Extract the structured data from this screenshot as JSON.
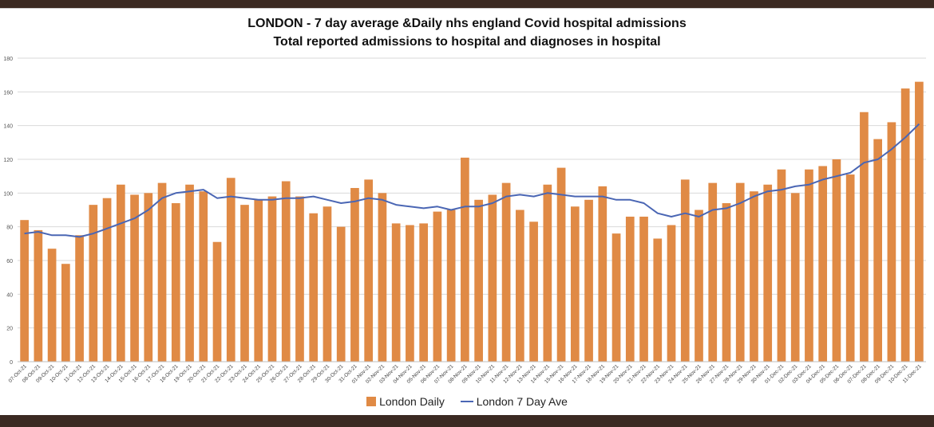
{
  "chart_data": {
    "type": "bar",
    "title": "LONDON - 7 day average &Daily nhs england Covid hospital admissions",
    "subtitle": "Total reported admissions to hospital and diagnoses in hospital",
    "ylim": [
      0,
      180
    ],
    "yticks": [
      0,
      20,
      40,
      60,
      80,
      100,
      120,
      140,
      160,
      180
    ],
    "categories": [
      "07-Oct-21",
      "08-Oct-21",
      "09-Oct-21",
      "10-Oct-21",
      "11-Oct-21",
      "12-Oct-21",
      "13-Oct-21",
      "14-Oct-21",
      "15-Oct-21",
      "16-Oct-21",
      "17-Oct-21",
      "18-Oct-21",
      "19-Oct-21",
      "20-Oct-21",
      "21-Oct-21",
      "22-Oct-21",
      "23-Oct-21",
      "24-Oct-21",
      "25-Oct-21",
      "26-Oct-21",
      "27-Oct-21",
      "28-Oct-21",
      "29-Oct-21",
      "30-Oct-21",
      "31-Oct-21",
      "01-Nov-21",
      "02-Nov-21",
      "03-Nov-21",
      "04-Nov-21",
      "05-Nov-21",
      "06-Nov-21",
      "07-Nov-21",
      "08-Nov-21",
      "09-Nov-21",
      "10-Nov-21",
      "11-Nov-21",
      "12-Nov-21",
      "13-Nov-21",
      "14-Nov-21",
      "15-Nov-21",
      "16-Nov-21",
      "17-Nov-21",
      "18-Nov-21",
      "19-Nov-21",
      "20-Nov-21",
      "21-Nov-21",
      "22-Nov-21",
      "23-Nov-21",
      "24-Nov-21",
      "25-Nov-21",
      "26-Nov-21",
      "27-Nov-21",
      "28-Nov-21",
      "29-Nov-21",
      "30-Nov-21",
      "01-Dec-21",
      "02-Dec-21",
      "03-Dec-21",
      "04-Dec-21",
      "05-Dec-21",
      "06-Dec-21",
      "07-Dec-21",
      "08-Dec-21",
      "09-Dec-21",
      "10-Dec-21",
      "11-Dec-21"
    ],
    "series": [
      {
        "name": "London Daily",
        "type": "bar",
        "color": "#e08a45",
        "values": [
          84,
          78,
          67,
          58,
          75,
          93,
          97,
          105,
          99,
          100,
          106,
          94,
          105,
          101,
          71,
          109,
          93,
          96,
          98,
          107,
          98,
          88,
          92,
          80,
          103,
          108,
          100,
          82,
          81,
          82,
          89,
          90,
          121,
          96,
          99,
          106,
          90,
          83,
          105,
          115,
          92,
          96,
          104,
          76,
          86,
          86,
          73,
          81,
          108,
          90,
          106,
          94,
          106,
          101,
          105,
          114,
          100,
          114,
          116,
          120,
          111,
          148,
          132,
          142,
          162,
          166
        ]
      },
      {
        "name": "London 7 Day Ave",
        "type": "line",
        "color": "#4a66b4",
        "values": [
          76,
          77,
          75,
          75,
          74,
          76,
          79,
          82,
          85,
          90,
          97,
          100,
          101,
          102,
          97,
          98,
          97,
          96,
          96,
          97,
          97,
          98,
          96,
          94,
          95,
          97,
          96,
          93,
          92,
          91,
          92,
          90,
          92,
          92,
          94,
          98,
          99,
          98,
          100,
          99,
          98,
          98,
          98,
          96,
          96,
          94,
          88,
          86,
          88,
          86,
          90,
          91,
          94,
          98,
          101,
          102,
          104,
          105,
          108,
          110,
          112,
          118,
          120,
          126,
          133,
          141
        ]
      }
    ]
  },
  "legend": {
    "daily_label": "London Daily",
    "avg_label": "London 7 Day Ave"
  }
}
